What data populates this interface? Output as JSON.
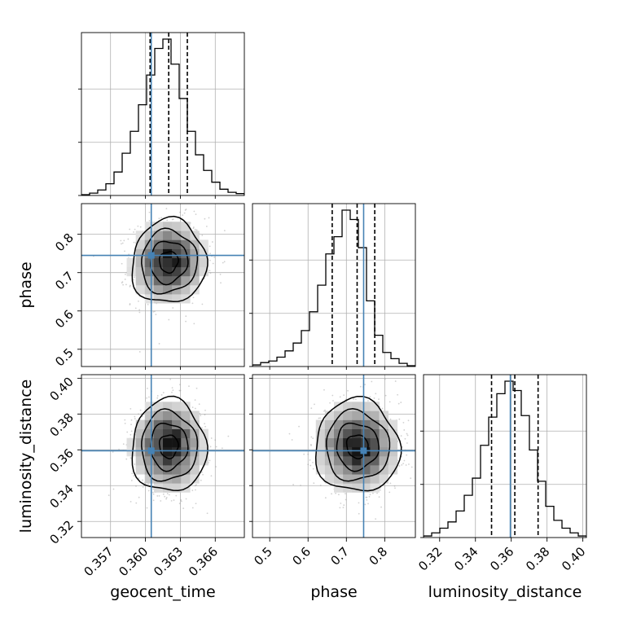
{
  "chart_data": {
    "type": "corner",
    "parameters": [
      {
        "name": "geocent_time",
        "label": "geocent_time",
        "range": [
          0.3545,
          0.3685
        ],
        "ticks": [
          0.357,
          0.36,
          0.363,
          0.366
        ],
        "tick_labels": [
          "0.357",
          "0.360",
          "0.363",
          "0.366"
        ],
        "truth": 0.3605,
        "quantiles": [
          0.3604,
          0.362,
          0.3636
        ],
        "histogram": {
          "edges_start": 0.3545,
          "bin_width": 0.0007,
          "counts": [
            0.5,
            1.5,
            3.5,
            7.5,
            15,
            27,
            41,
            58,
            77,
            94,
            100,
            84,
            62,
            41,
            26,
            16,
            8.5,
            4,
            2,
            1.2
          ]
        }
      },
      {
        "name": "phase",
        "label": "phase",
        "range": [
          0.455,
          0.88
        ],
        "ticks": [
          0.5,
          0.6,
          0.7,
          0.8
        ],
        "tick_labels": [
          "0.5",
          "0.6",
          "0.7",
          "0.8"
        ],
        "truth": 0.745,
        "quantiles": [
          0.663,
          0.728,
          0.774
        ],
        "histogram": {
          "edges_start": 0.455,
          "bin_width": 0.02125,
          "counts": [
            1,
            2.5,
            3.5,
            6,
            10,
            15,
            23,
            35,
            52,
            72,
            83,
            100,
            94,
            76,
            42,
            20,
            9,
            5,
            2,
            0.5
          ]
        }
      },
      {
        "name": "luminosity_distance",
        "label": "luminosity_distance",
        "range": [
          0.311,
          0.402
        ],
        "ticks": [
          0.32,
          0.34,
          0.36,
          0.38,
          0.4
        ],
        "tick_labels": [
          "0.32",
          "0.34",
          "0.36",
          "0.38",
          "0.40"
        ],
        "truth": 0.3595,
        "quantiles": [
          0.349,
          0.362,
          0.375
        ],
        "histogram": {
          "edges_start": 0.311,
          "bin_width": 0.00455,
          "counts": [
            1,
            3,
            6,
            10,
            17,
            27,
            38,
            59,
            77,
            92,
            100,
            94,
            78,
            56,
            36,
            20,
            11,
            6,
            3,
            1
          ]
        }
      }
    ],
    "marginal_y_ticks": [
      0,
      0.333,
      0.667
    ],
    "panels_2d": [
      {
        "x": "geocent_time",
        "y": "phase",
        "mean": [
          0.362,
          0.728
        ],
        "std": [
          0.0016,
          0.055
        ],
        "corr": 0.05
      },
      {
        "x": "geocent_time",
        "y": "luminosity_distance",
        "mean": [
          0.362,
          0.362
        ],
        "std": [
          0.0016,
          0.013
        ],
        "corr": 0.0
      },
      {
        "x": "phase",
        "y": "luminosity_distance",
        "mean": [
          0.728,
          0.362
        ],
        "std": [
          0.055,
          0.013
        ],
        "corr": -0.02
      }
    ],
    "truth_color": "#4682b4",
    "hist_color": "#000000",
    "grid": true
  }
}
